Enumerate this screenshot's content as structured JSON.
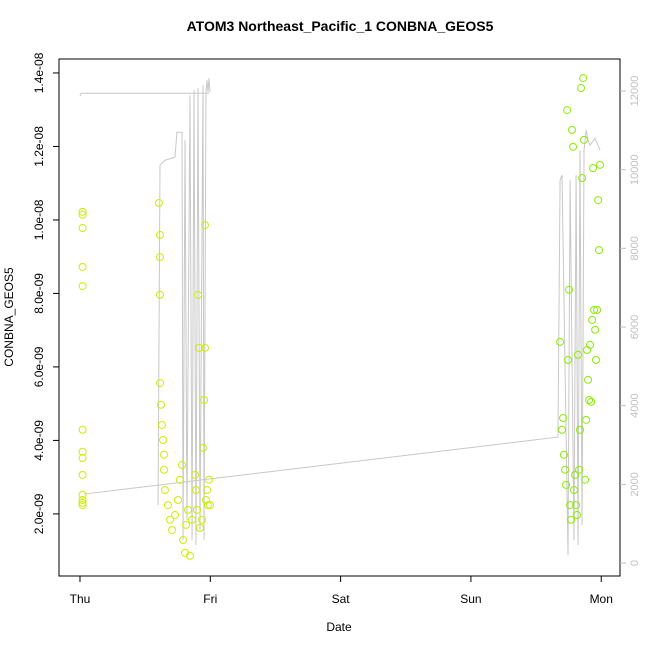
{
  "chart_data": {
    "type": "scatter",
    "title": "ATOM3 Northeast_Pacific_1 CONBNA_GEOS5",
    "x_label": "Date",
    "y_label": "CONBNA_GEOS5",
    "xlim": [
      -0.161,
      4.144
    ],
    "xticks": [
      {
        "value": 0,
        "label": "Thu"
      },
      {
        "value": 1,
        "label": "Fri"
      },
      {
        "value": 2,
        "label": "Sat"
      },
      {
        "value": 3,
        "label": "Sun"
      },
      {
        "value": 4,
        "label": "Mon"
      }
    ],
    "ylim": [
      3.1e-10,
      1.438e-08
    ],
    "yticks": [
      {
        "value": 2e-09,
        "label": "2.0e-09"
      },
      {
        "value": 4e-09,
        "label": "4.0e-09"
      },
      {
        "value": 6e-09,
        "label": "6.0e-09"
      },
      {
        "value": 8e-09,
        "label": "8.0e-09"
      },
      {
        "value": 1e-08,
        "label": "1.0e-08"
      },
      {
        "value": 1.2e-08,
        "label": "1.2e-08"
      },
      {
        "value": 1.4e-08,
        "label": "1.4e-08"
      }
    ],
    "y2lim": [
      -330,
      12813
    ],
    "y2ticks": [
      0,
      2000,
      4000,
      6000,
      8000,
      10000,
      12000
    ],
    "y2_color": "#c0c0c0",
    "series": [
      {
        "color": "#ccee00",
        "x": [
          0.02,
          0.02,
          0.02,
          0.02,
          0.02,
          0.02,
          0.02,
          0.02,
          0.02,
          0.02,
          0.02,
          0.02,
          0.02,
          0.606,
          0.614,
          0.614,
          0.614,
          0.614,
          0.622,
          0.629,
          0.637,
          0.645,
          0.645,
          0.652,
          0.675,
          0.691,
          0.706,
          0.729,
          0.752,
          0.767,
          0.783,
          0.791,
          0.806,
          0.814,
          0.829,
          0.844,
          0.86,
          0.883,
          0.89,
          0.898,
          0.906,
          0.913,
          0.921,
          0.936,
          0.944,
          0.952,
          0.959,
          0.959,
          0.967,
          0.975,
          0.982,
          0.99,
          0.998
        ],
        "values": [
          2.24e-09,
          2.38e-09,
          2.52e-09,
          1.014e-08,
          1.022e-08,
          9.78e-09,
          8.72e-09,
          8.2e-09,
          4.29e-09,
          3.69e-09,
          3.52e-09,
          3.06e-09,
          2.3e-09,
          1.046e-08,
          9.59e-09,
          8.99e-09,
          7.96e-09,
          5.56e-09,
          4.97e-09,
          4.42e-09,
          4.01e-09,
          3.61e-09,
          3.2e-09,
          2.65e-09,
          2.24e-09,
          1.84e-09,
          1.56e-09,
          1.97e-09,
          2.38e-09,
          2.93e-09,
          3.33e-09,
          1.29e-09,
          9.4e-10,
          1.7e-09,
          2.11e-09,
          8.6e-10,
          1.84e-09,
          3.06e-09,
          2.65e-09,
          2.11e-09,
          7.96e-09,
          6.52e-09,
          1.62e-09,
          1.84e-09,
          3.8e-09,
          5.1e-09,
          9.86e-09,
          6.52e-09,
          2.38e-09,
          2.65e-09,
          2.24e-09,
          2.93e-09,
          2.24e-09
        ]
      },
      {
        "color": "#88ee00",
        "x": [
          3.684,
          3.699,
          3.707,
          3.714,
          3.722,
          3.73,
          3.738,
          3.745,
          3.753,
          3.761,
          3.768,
          3.776,
          3.784,
          3.791,
          3.799,
          3.807,
          3.814,
          3.822,
          3.83,
          3.837,
          3.845,
          3.853,
          3.861,
          3.868,
          3.876,
          3.884,
          3.891,
          3.899,
          3.907,
          3.914,
          3.922,
          3.93,
          3.937,
          3.945,
          3.953,
          3.96,
          3.968,
          3.976,
          3.983,
          3.991
        ],
        "values": [
          6.68e-09,
          4.29e-09,
          4.61e-09,
          3.61e-09,
          3.2e-09,
          2.79e-09,
          1.299e-08,
          6.19e-09,
          8.1e-09,
          2.24e-09,
          1.84e-09,
          1.245e-08,
          1.199e-08,
          2.65e-09,
          3.06e-09,
          2.24e-09,
          1.97e-09,
          6.33e-09,
          3.2e-09,
          4.29e-09,
          1.359e-08,
          1.114e-08,
          1.386e-08,
          1.218e-08,
          2.93e-09,
          4.56e-09,
          6.46e-09,
          5.65e-09,
          5.1e-09,
          6.6e-09,
          5.05e-09,
          7.28e-09,
          1.141e-08,
          7.55e-09,
          7.01e-09,
          6.19e-09,
          7.55e-09,
          1.054e-08,
          9.18e-09,
          1.15e-08
        ]
      },
      {
        "type": "line",
        "axis": "y2",
        "color": "#c8c8c8",
        "x": [
          0,
          0.008,
          0.99,
          null,
          0.599,
          0.614,
          0.652,
          0.729,
          0.744,
          0.783,
          0.791,
          0.806,
          0.821,
          0.844,
          0.86,
          0.875,
          0.89,
          0.906,
          0.921,
          0.944,
          0.952,
          0.967,
          0.975,
          0.982,
          0.99,
          0.998,
          null,
          0.031,
          3.668,
          3.684,
          3.699,
          3.745,
          3.761,
          3.791,
          3.807,
          3.822,
          3.837,
          3.853,
          3.868,
          3.884,
          3.899,
          3.914,
          3.952,
          3.991
        ],
        "values": [
          11866,
          11943,
          11943,
          null,
          1474,
          10113,
          10240,
          10317,
          10952,
          10952,
          584,
          10748,
          1093,
          11892,
          584,
          12019,
          457,
          12070,
          838,
          12146,
          584,
          12019,
          12273,
          11968,
          12324,
          11968,
          null,
          1753,
          3202,
          9732,
          9859,
          203,
          9732,
          584,
          9859,
          457,
          10494,
          966,
          10494,
          11003,
          10748,
          10621,
          10799,
          10494
        ]
      }
    ]
  }
}
